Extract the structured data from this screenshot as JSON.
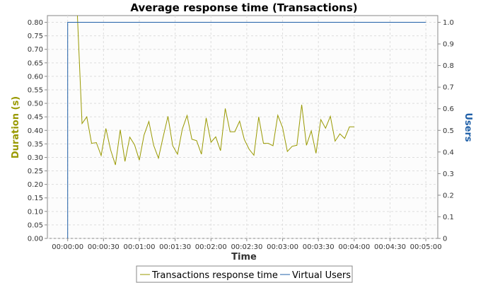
{
  "chart_data": {
    "type": "line",
    "title": "Average response time (Transactions)",
    "xlabel": "Time",
    "ylabel_left": "Duration (s)",
    "ylabel_right": "Users",
    "x_ticks": [
      "00:00:00",
      "00:00:30",
      "00:01:00",
      "00:01:30",
      "00:02:00",
      "00:02:30",
      "00:03:00",
      "00:03:30",
      "00:04:00",
      "00:04:30",
      "00:05:00"
    ],
    "xlim_seconds": [
      -17,
      310
    ],
    "ylim_left": [
      0,
      0.825
    ],
    "ylim_right": [
      0,
      1.0312
    ],
    "y_ticks_left": [
      "0.00",
      "0.05",
      "0.10",
      "0.15",
      "0.20",
      "0.25",
      "0.30",
      "0.35",
      "0.40",
      "0.45",
      "0.50",
      "0.55",
      "0.60",
      "0.65",
      "0.70",
      "0.75",
      "0.80"
    ],
    "y_ticks_right": [
      "0",
      "0.1",
      "0.2",
      "0.3",
      "0.4",
      "0.5",
      "0.6",
      "0.7",
      "0.8",
      "0.9",
      "1.0"
    ],
    "grid": true,
    "legend_position": "bottom",
    "series": [
      {
        "name": "Transactions response time",
        "color": "#999900",
        "axis": "left",
        "points": [
          [
            8,
            0.84
          ],
          [
            12,
            0.425
          ],
          [
            16,
            0.45
          ],
          [
            20,
            0.352
          ],
          [
            24,
            0.355
          ],
          [
            28,
            0.307
          ],
          [
            32,
            0.407
          ],
          [
            36,
            0.327
          ],
          [
            40,
            0.272
          ],
          [
            44,
            0.402
          ],
          [
            48,
            0.285
          ],
          [
            52,
            0.375
          ],
          [
            56,
            0.347
          ],
          [
            60,
            0.29
          ],
          [
            64,
            0.383
          ],
          [
            68,
            0.433
          ],
          [
            72,
            0.345
          ],
          [
            76,
            0.297
          ],
          [
            80,
            0.376
          ],
          [
            84,
            0.452
          ],
          [
            88,
            0.343
          ],
          [
            92,
            0.312
          ],
          [
            96,
            0.405
          ],
          [
            100,
            0.455
          ],
          [
            104,
            0.367
          ],
          [
            108,
            0.362
          ],
          [
            112,
            0.312
          ],
          [
            116,
            0.446
          ],
          [
            120,
            0.356
          ],
          [
            124,
            0.376
          ],
          [
            128,
            0.325
          ],
          [
            132,
            0.481
          ],
          [
            136,
            0.395
          ],
          [
            140,
            0.395
          ],
          [
            144,
            0.434
          ],
          [
            148,
            0.366
          ],
          [
            152,
            0.33
          ],
          [
            156,
            0.308
          ],
          [
            160,
            0.45
          ],
          [
            164,
            0.352
          ],
          [
            168,
            0.352
          ],
          [
            172,
            0.343
          ],
          [
            176,
            0.456
          ],
          [
            180,
            0.41
          ],
          [
            184,
            0.322
          ],
          [
            188,
            0.341
          ],
          [
            192,
            0.345
          ],
          [
            196,
            0.495
          ],
          [
            200,
            0.345
          ],
          [
            204,
            0.398
          ],
          [
            208,
            0.315
          ],
          [
            212,
            0.44
          ],
          [
            216,
            0.408
          ],
          [
            220,
            0.452
          ],
          [
            224,
            0.36
          ],
          [
            228,
            0.387
          ],
          [
            232,
            0.37
          ],
          [
            236,
            0.413
          ],
          [
            240,
            0.413
          ]
        ]
      },
      {
        "name": "Virtual Users",
        "color": "#2060a8",
        "axis": "right",
        "points": [
          [
            0,
            0
          ],
          [
            0,
            1.0
          ],
          [
            300,
            1.0
          ]
        ]
      }
    ]
  }
}
